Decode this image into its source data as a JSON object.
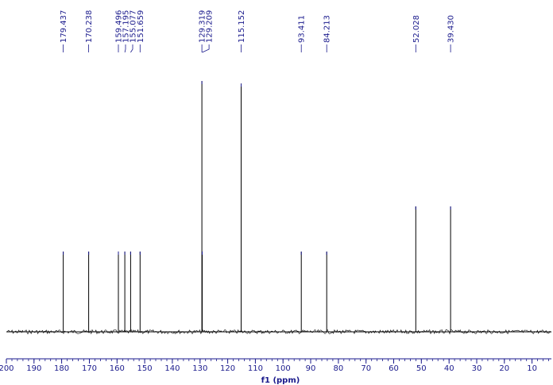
{
  "chart_data": {
    "type": "line",
    "subtype": "nmr-spectrum",
    "xlabel": "f1 (ppm)",
    "xlim": [
      200,
      3
    ],
    "x_reversed": true,
    "x_ticks": [
      200,
      190,
      180,
      170,
      160,
      150,
      140,
      130,
      120,
      110,
      100,
      90,
      80,
      70,
      60,
      50,
      40,
      30,
      20,
      10
    ],
    "peaks": [
      {
        "ppm": 179.437,
        "label": "179.437",
        "intensity": 0.32
      },
      {
        "ppm": 170.238,
        "label": "170.238",
        "intensity": 0.32
      },
      {
        "ppm": 159.496,
        "label": "159.496",
        "intensity": 0.32
      },
      {
        "ppm": 157.195,
        "label": "157.195",
        "intensity": 0.32
      },
      {
        "ppm": 155.077,
        "label": "155.077",
        "intensity": 0.32
      },
      {
        "ppm": 151.659,
        "label": "151.659",
        "intensity": 0.32
      },
      {
        "ppm": 129.319,
        "label": "129.319",
        "intensity": 1.0
      },
      {
        "ppm": 129.209,
        "label": "129.209",
        "intensity": 0.32
      },
      {
        "ppm": 115.152,
        "label": "115.152",
        "intensity": 0.99
      },
      {
        "ppm": 93.411,
        "label": "93.411",
        "intensity": 0.32
      },
      {
        "ppm": 84.213,
        "label": "84.213",
        "intensity": 0.32
      },
      {
        "ppm": 52.028,
        "label": "52.028",
        "intensity": 0.5
      },
      {
        "ppm": 39.43,
        "label": "39.430",
        "intensity": 0.5
      }
    ],
    "colors": {
      "spectrum": "#000000",
      "labels": "#1a1a8c",
      "axis": "#1a1a8c"
    },
    "grid": false
  }
}
